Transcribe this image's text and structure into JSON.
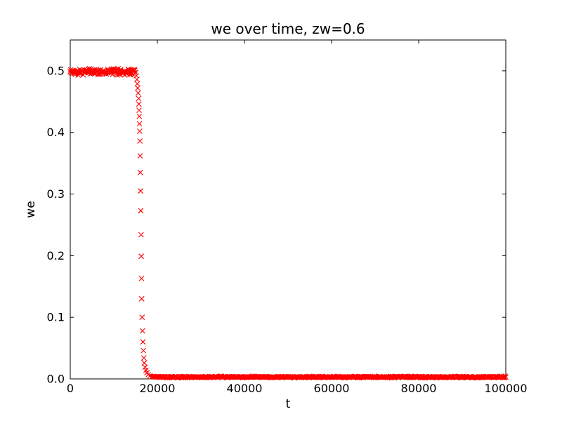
{
  "figure": {
    "background": "#ffffff",
    "frame_color": "#000000"
  },
  "chart_data": {
    "type": "scatter",
    "title": "we over time, zw=0.6",
    "xlabel": "t",
    "ylabel": "we",
    "marker": "x",
    "marker_color": "#ff0000",
    "grid": false,
    "legend": null,
    "xlim": [
      0,
      100000
    ],
    "ylim": [
      0,
      0.55
    ],
    "xticks": [
      0,
      20000,
      40000,
      60000,
      80000,
      100000
    ],
    "xtick_labels": [
      "0",
      "20000",
      "40000",
      "60000",
      "80000",
      "100000"
    ],
    "yticks": [
      0.0,
      0.1,
      0.2,
      0.3,
      0.4,
      0.5
    ],
    "ytick_labels": [
      "0.0",
      "0.1",
      "0.2",
      "0.3",
      "0.4",
      "0.5"
    ],
    "series": [
      {
        "name": "we",
        "description": "we holds near 0.5 with small noise until t~15000, collapses sharply to ~0 around t~16000-18000, then stays near 0 up to t=100000",
        "segments": [
          {
            "kind": "noisy_plateau",
            "t_start": 0,
            "t_end": 14900,
            "t_step": 100,
            "value": 0.4985,
            "noise": 0.006
          },
          {
            "kind": "points",
            "points": [
              [
                15000,
                0.497
              ],
              [
                15150,
                0.492
              ],
              [
                15300,
                0.486
              ],
              [
                15400,
                0.479
              ],
              [
                15500,
                0.472
              ],
              [
                15600,
                0.464
              ],
              [
                15700,
                0.455
              ],
              [
                15750,
                0.446
              ],
              [
                15800,
                0.436
              ],
              [
                15850,
                0.426
              ],
              [
                15900,
                0.414
              ],
              [
                15950,
                0.402
              ],
              [
                16000,
                0.386
              ],
              [
                16050,
                0.362
              ],
              [
                16100,
                0.335
              ],
              [
                16150,
                0.305
              ],
              [
                16200,
                0.273
              ],
              [
                16250,
                0.234
              ],
              [
                16300,
                0.199
              ],
              [
                16350,
                0.163
              ],
              [
                16400,
                0.13
              ],
              [
                16500,
                0.1
              ],
              [
                16600,
                0.078
              ],
              [
                16700,
                0.06
              ],
              [
                16800,
                0.046
              ],
              [
                16900,
                0.034
              ],
              [
                17000,
                0.026
              ],
              [
                17200,
                0.019
              ],
              [
                17400,
                0.014
              ],
              [
                17600,
                0.01
              ],
              [
                17900,
                0.007
              ],
              [
                18300,
                0.005
              ]
            ]
          },
          {
            "kind": "noisy_plateau",
            "t_start": 18700,
            "t_end": 100000,
            "t_step": 150,
            "value": 0.003,
            "noise": 0.0015
          }
        ]
      }
    ]
  }
}
